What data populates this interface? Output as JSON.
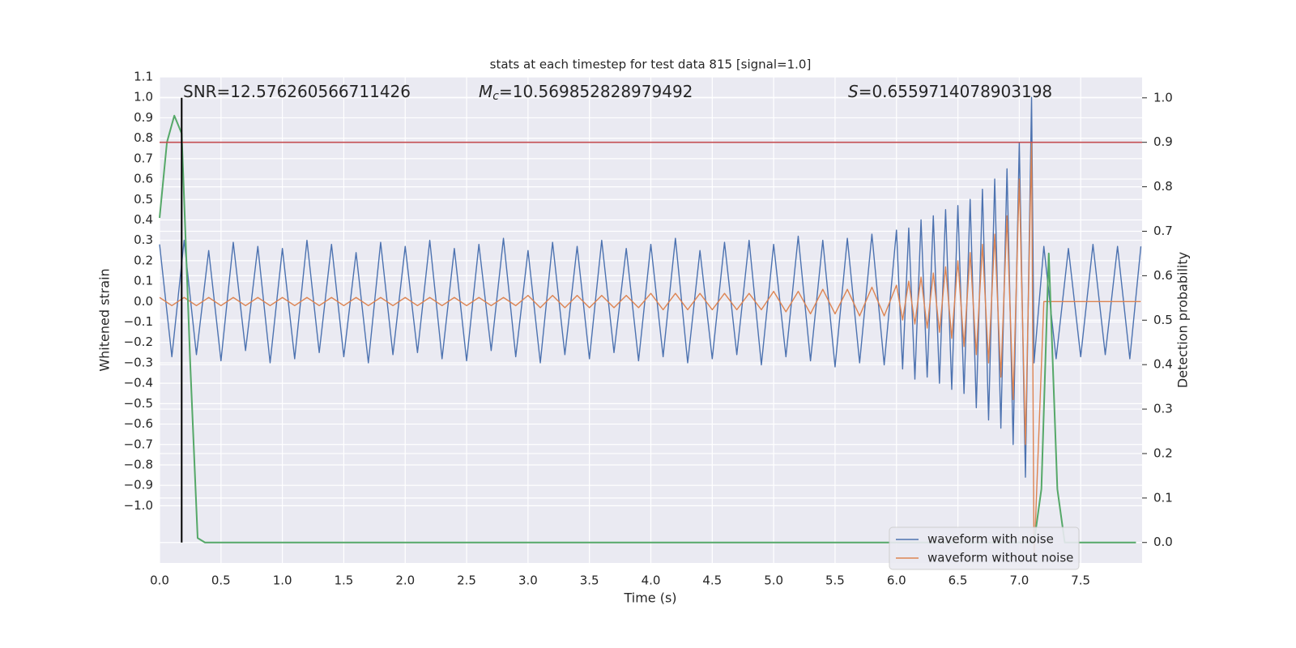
{
  "chart_data": {
    "type": "line",
    "title": "stats at each timestep for test data 815 [signal=1.0]",
    "xlabel": "Time (s)",
    "ylabel": "Whitened strain",
    "y2label": "Detection probability",
    "annotations": [
      {
        "text": "SNR=12.576260566711426"
      },
      {
        "symbol": "M",
        "subscript": "c",
        "text": "=10.569852828979492"
      },
      {
        "symbol": "S",
        "text": "=0.6559714078903198"
      }
    ],
    "x": [
      0.0,
      0.1,
      0.2,
      0.3,
      0.4,
      0.5,
      0.6,
      0.7,
      0.8,
      0.9,
      1.0,
      1.1,
      1.2,
      1.3,
      1.4,
      1.5,
      1.6,
      1.7,
      1.8,
      1.9,
      2.0,
      2.1,
      2.2,
      2.3,
      2.4,
      2.5,
      2.6,
      2.7,
      2.8,
      2.9,
      3.0,
      3.1,
      3.2,
      3.3,
      3.4,
      3.5,
      3.6,
      3.7,
      3.8,
      3.9,
      4.0,
      4.1,
      4.2,
      4.3,
      4.4,
      4.5,
      4.6,
      4.7,
      4.8,
      4.9,
      5.0,
      5.1,
      5.2,
      5.3,
      5.4,
      5.5,
      5.6,
      5.7,
      5.8,
      5.9,
      6.0,
      6.05,
      6.1,
      6.15,
      6.2,
      6.25,
      6.3,
      6.35,
      6.4,
      6.45,
      6.5,
      6.55,
      6.6,
      6.65,
      6.7,
      6.75,
      6.8,
      6.85,
      6.9,
      6.95,
      7.0,
      7.05,
      7.1,
      7.12,
      7.2,
      7.3,
      7.4,
      7.5,
      7.6,
      7.7,
      7.8,
      7.9,
      7.99
    ],
    "series": [
      {
        "name": "waveform with noise",
        "color": "#4c72b0",
        "values": [
          0.28,
          -0.27,
          0.3,
          -0.26,
          0.25,
          -0.29,
          0.29,
          -0.24,
          0.27,
          -0.3,
          0.26,
          -0.28,
          0.3,
          -0.25,
          0.28,
          -0.27,
          0.24,
          -0.3,
          0.29,
          -0.26,
          0.27,
          -0.25,
          0.3,
          -0.28,
          0.26,
          -0.29,
          0.28,
          -0.24,
          0.31,
          -0.27,
          0.25,
          -0.3,
          0.29,
          -0.26,
          0.27,
          -0.28,
          0.3,
          -0.25,
          0.26,
          -0.29,
          0.28,
          -0.27,
          0.31,
          -0.3,
          0.25,
          -0.28,
          0.29,
          -0.26,
          0.3,
          -0.31,
          0.28,
          -0.27,
          0.32,
          -0.29,
          0.3,
          -0.32,
          0.31,
          -0.3,
          0.33,
          -0.31,
          0.35,
          -0.33,
          0.36,
          -0.38,
          0.4,
          -0.37,
          0.42,
          -0.4,
          0.45,
          -0.43,
          0.47,
          -0.45,
          0.5,
          -0.52,
          0.55,
          -0.58,
          0.6,
          -0.62,
          0.65,
          -0.7,
          0.78,
          -0.86,
          1.0,
          -0.3,
          0.27,
          -0.28,
          0.26,
          -0.27,
          0.28,
          -0.26,
          0.27,
          -0.28,
          0.27
        ]
      },
      {
        "name": "waveform without noise",
        "color": "#dd8452",
        "values": [
          0.02,
          -0.02,
          0.02,
          -0.02,
          0.02,
          -0.02,
          0.02,
          -0.02,
          0.02,
          -0.02,
          0.02,
          -0.02,
          0.02,
          -0.02,
          0.02,
          -0.02,
          0.02,
          -0.02,
          0.02,
          -0.02,
          0.02,
          -0.02,
          0.02,
          -0.02,
          0.02,
          -0.02,
          0.02,
          -0.02,
          0.02,
          -0.02,
          0.03,
          -0.03,
          0.03,
          -0.03,
          0.03,
          -0.03,
          0.03,
          -0.03,
          0.03,
          -0.03,
          0.04,
          -0.04,
          0.04,
          -0.04,
          0.04,
          -0.04,
          0.04,
          -0.04,
          0.04,
          -0.04,
          0.05,
          -0.05,
          0.05,
          -0.06,
          0.06,
          -0.06,
          0.06,
          -0.07,
          0.07,
          -0.07,
          0.08,
          -0.09,
          0.1,
          -0.11,
          0.12,
          -0.13,
          0.14,
          -0.15,
          0.17,
          -0.18,
          0.2,
          -0.22,
          0.24,
          -0.26,
          0.28,
          -0.3,
          0.33,
          -0.37,
          0.42,
          -0.48,
          0.6,
          -0.7,
          0.78,
          -1.27,
          0.0,
          0.0,
          0.0,
          0.0,
          0.0,
          0.0,
          0.0,
          0.0,
          0.0
        ]
      }
    ],
    "probability": {
      "color": "#55a868",
      "axis": "y2",
      "x": [
        0.0,
        0.06,
        0.12,
        0.18,
        0.25,
        0.31,
        0.37,
        1.0,
        2.0,
        3.0,
        4.0,
        5.0,
        6.0,
        7.0,
        7.12,
        7.18,
        7.24,
        7.31,
        7.37,
        7.95
      ],
      "values": [
        0.73,
        0.9,
        0.96,
        0.92,
        0.4,
        0.01,
        0.0,
        0.0,
        0.0,
        0.0,
        0.0,
        0.0,
        0.0,
        0.0,
        0.0,
        0.12,
        0.65,
        0.12,
        0.0,
        0.0
      ]
    },
    "threshold": {
      "value": 0.9,
      "axis": "y2",
      "color": "#c44e52"
    },
    "marker_line": {
      "x": 0.18,
      "ymin": 0.0,
      "ymax": 1.0,
      "axis": "y2",
      "color": "#000000"
    },
    "xlim": [
      0,
      8.0
    ],
    "ylim": [
      -1.28,
      1.1
    ],
    "y2lim": [
      -0.046,
      1.047
    ],
    "xticks": [
      {
        "value": 0,
        "label": "0.0"
      },
      {
        "value": 0.5,
        "label": "0.5"
      },
      {
        "value": 1,
        "label": "1.0"
      },
      {
        "value": 1.5,
        "label": "1.5"
      },
      {
        "value": 2,
        "label": "2.0"
      },
      {
        "value": 2.5,
        "label": "2.5"
      },
      {
        "value": 3,
        "label": "3.0"
      },
      {
        "value": 3.5,
        "label": "3.5"
      },
      {
        "value": 4,
        "label": "4.0"
      },
      {
        "value": 4.5,
        "label": "4.5"
      },
      {
        "value": 5,
        "label": "5.0"
      },
      {
        "value": 5.5,
        "label": "5.5"
      },
      {
        "value": 6,
        "label": "6.0"
      },
      {
        "value": 6.5,
        "label": "6.5"
      },
      {
        "value": 7,
        "label": "7.0"
      },
      {
        "value": 7.5,
        "label": "7.5"
      }
    ],
    "yticks": [
      {
        "value": -1,
        "label": "−1.0"
      },
      {
        "value": -0.9,
        "label": "−0.9"
      },
      {
        "value": -0.8,
        "label": "−0.8"
      },
      {
        "value": -0.7,
        "label": "−0.7"
      },
      {
        "value": -0.6,
        "label": "−0.6"
      },
      {
        "value": -0.5,
        "label": "−0.5"
      },
      {
        "value": -0.4,
        "label": "−0.4"
      },
      {
        "value": -0.3,
        "label": "−0.3"
      },
      {
        "value": -0.2,
        "label": "−0.2"
      },
      {
        "value": -0.1,
        "label": "−0.1"
      },
      {
        "value": 0,
        "label": "0.0"
      },
      {
        "value": 0.1,
        "label": "0.1"
      },
      {
        "value": 0.2,
        "label": "0.2"
      },
      {
        "value": 0.3,
        "label": "0.3"
      },
      {
        "value": 0.4,
        "label": "0.4"
      },
      {
        "value": 0.5,
        "label": "0.5"
      },
      {
        "value": 0.6,
        "label": "0.6"
      },
      {
        "value": 0.7,
        "label": "0.7"
      },
      {
        "value": 0.8,
        "label": "0.8"
      },
      {
        "value": 0.9,
        "label": "0.9"
      },
      {
        "value": 1,
        "label": "1.0"
      },
      {
        "value": 1.1,
        "label": "1.1"
      }
    ],
    "y2ticks": [
      {
        "value": 0,
        "label": "0.0"
      },
      {
        "value": 0.1,
        "label": "0.1"
      },
      {
        "value": 0.2,
        "label": "0.2"
      },
      {
        "value": 0.3,
        "label": "0.3"
      },
      {
        "value": 0.4,
        "label": "0.4"
      },
      {
        "value": 0.5,
        "label": "0.5"
      },
      {
        "value": 0.6,
        "label": "0.6"
      },
      {
        "value": 0.7,
        "label": "0.7"
      },
      {
        "value": 0.8,
        "label": "0.8"
      },
      {
        "value": 0.9,
        "label": "0.9"
      },
      {
        "value": 1,
        "label": "1.0"
      }
    ],
    "grid": true,
    "legend": "lower right"
  }
}
